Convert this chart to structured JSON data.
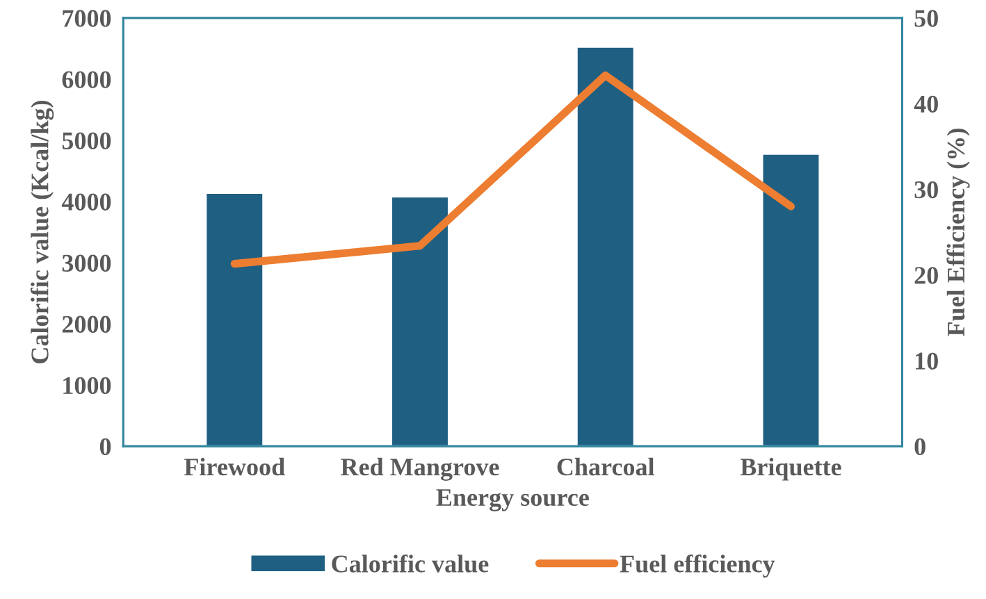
{
  "chart_data": {
    "type": "bar",
    "xlabel": "Energy source",
    "ylabel": "Calorific value (Kcal/kg)",
    "y2label": "Fuel Efficiency (%)",
    "categories": [
      "Firewood",
      "Red Mangrove",
      "Charcoal",
      "Briquette"
    ],
    "series": [
      {
        "name": "Calorific value",
        "color": "#1f5f82",
        "values": [
          4140,
          4080,
          6530,
          4780
        ]
      },
      {
        "name": "Fuel efficiency",
        "type": "line",
        "axis": "y2",
        "color": "#ed7d31",
        "values": [
          21.3,
          23.4,
          43.3,
          28.0
        ]
      }
    ],
    "ylim": [
      0,
      7000
    ],
    "yticks": [
      0,
      1000,
      2000,
      3000,
      4000,
      5000,
      6000,
      7000
    ],
    "y2lim": [
      0,
      50
    ],
    "y2ticks": [
      0,
      10,
      20,
      30,
      40,
      50
    ],
    "grid": false,
    "legend": "bottom"
  }
}
